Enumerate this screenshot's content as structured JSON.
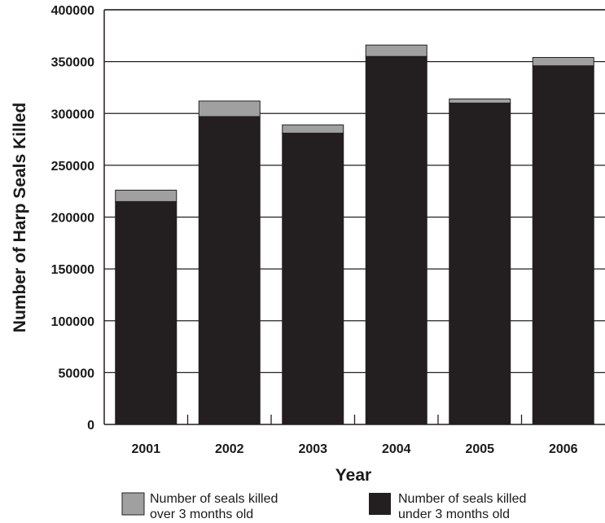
{
  "chart_data": {
    "type": "bar",
    "stacked": true,
    "categories": [
      "2001",
      "2002",
      "2003",
      "2004",
      "2005",
      "2006"
    ],
    "series": [
      {
        "name": "Number of seals killed under 3 months old",
        "color": "#231f20",
        "values": [
          215000,
          297000,
          281000,
          355000,
          310000,
          346000
        ]
      },
      {
        "name": "Number of seals killed over 3 months old",
        "color": "#a0a0a0",
        "values": [
          11000,
          15000,
          8000,
          11000,
          4000,
          8000
        ]
      }
    ],
    "xlabel": "Year",
    "ylabel": "Number of Harp Seals Killed",
    "ylim": [
      0,
      400000
    ],
    "yticks": [
      "0",
      "50000",
      "100000",
      "150000",
      "200000",
      "250000",
      "300000",
      "350000",
      "400000"
    ],
    "grid": "horizontal",
    "legend": {
      "position": "bottom",
      "items": [
        {
          "label_lines": [
            "Number of seals killed",
            "over 3 months old"
          ],
          "color": "#a0a0a0"
        },
        {
          "label_lines": [
            "Number of seals killed",
            "under 3 months old"
          ],
          "color": "#231f20"
        }
      ]
    }
  }
}
